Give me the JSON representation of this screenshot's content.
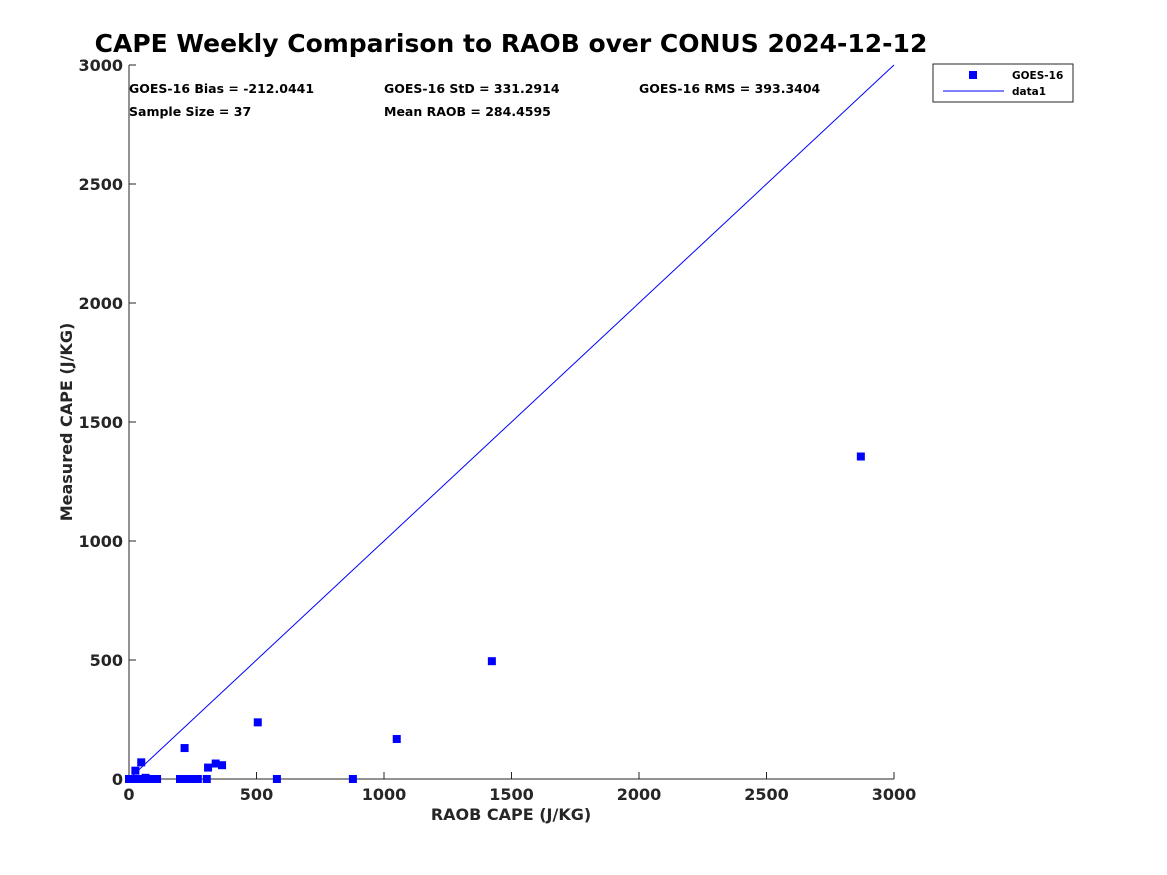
{
  "chart_data": {
    "type": "scatter",
    "title": "CAPE Weekly Comparison to RAOB over CONUS 2024-12-12",
    "xlabel": "RAOB CAPE (J/KG)",
    "ylabel": "Measured CAPE (J/KG)",
    "xlim": [
      0,
      3000
    ],
    "ylim": [
      0,
      3000
    ],
    "xticks": [
      "0",
      "500",
      "1000",
      "1500",
      "2000",
      "2500",
      "3000"
    ],
    "yticks": [
      "0",
      "500",
      "1000",
      "1500",
      "2000",
      "2500",
      "3000"
    ],
    "grid": false,
    "legend_position": "top-right-outside",
    "color": "#0000ff",
    "series": [
      {
        "name": "GOES-16",
        "marker": "square",
        "points": [
          [
            0,
            0
          ],
          [
            5,
            0
          ],
          [
            10,
            0
          ],
          [
            15,
            0
          ],
          [
            25,
            35
          ],
          [
            30,
            0
          ],
          [
            40,
            0
          ],
          [
            48,
            70
          ],
          [
            55,
            0
          ],
          [
            65,
            5
          ],
          [
            75,
            0
          ],
          [
            90,
            0
          ],
          [
            100,
            0
          ],
          [
            110,
            0
          ],
          [
            200,
            0
          ],
          [
            210,
            0
          ],
          [
            218,
            130
          ],
          [
            230,
            0
          ],
          [
            245,
            0
          ],
          [
            260,
            0
          ],
          [
            270,
            0
          ],
          [
            305,
            0
          ],
          [
            310,
            48
          ],
          [
            340,
            65
          ],
          [
            365,
            58
          ],
          [
            505,
            238
          ],
          [
            580,
            0
          ],
          [
            878,
            0
          ],
          [
            1050,
            168
          ],
          [
            1423,
            495
          ],
          [
            2870,
            1355
          ]
        ]
      },
      {
        "name": "data1",
        "line": true,
        "points": [
          [
            0,
            0
          ],
          [
            3000,
            3000
          ]
        ]
      }
    ],
    "annotations": [
      "GOES-16 Bias = -212.0441",
      "GOES-16 StD = 331.2914",
      "GOES-16 RMS = 393.3404",
      "Sample Size = 37",
      "Mean RAOB = 284.4595"
    ]
  }
}
